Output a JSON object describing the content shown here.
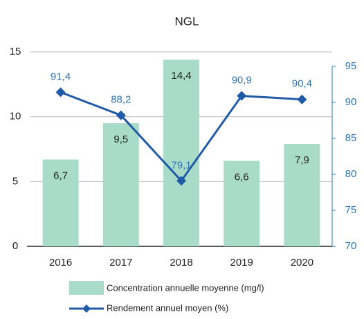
{
  "chart_data": {
    "type": "bar_line",
    "title": "NGL",
    "categories": [
      "2016",
      "2017",
      "2018",
      "2019",
      "2020"
    ],
    "series": [
      {
        "name": "Concentration annuelle moyenne (mg/l)",
        "type": "bar",
        "color": "#a9dcc8",
        "axis": "y",
        "values": [
          6.7,
          9.5,
          14.4,
          6.6,
          7.9
        ],
        "value_labels": [
          "6,7",
          "9,5",
          "14,4",
          "6,6",
          "7,9"
        ]
      },
      {
        "name": "Rendement annuel moyen (%)",
        "type": "line",
        "color": "#1f5ba6",
        "axis": "y2",
        "values": [
          91.4,
          88.2,
          79.1,
          90.9,
          90.4
        ],
        "value_labels": [
          "91,4",
          "88,2",
          "79,1",
          "90,9",
          "90,4"
        ]
      }
    ],
    "ylim": [
      0,
      15
    ],
    "yticks": [
      0,
      5,
      10,
      15
    ],
    "y2lim": [
      70,
      97
    ],
    "y2ticks": [
      70,
      75,
      80,
      85,
      90,
      95
    ],
    "grid": true
  }
}
